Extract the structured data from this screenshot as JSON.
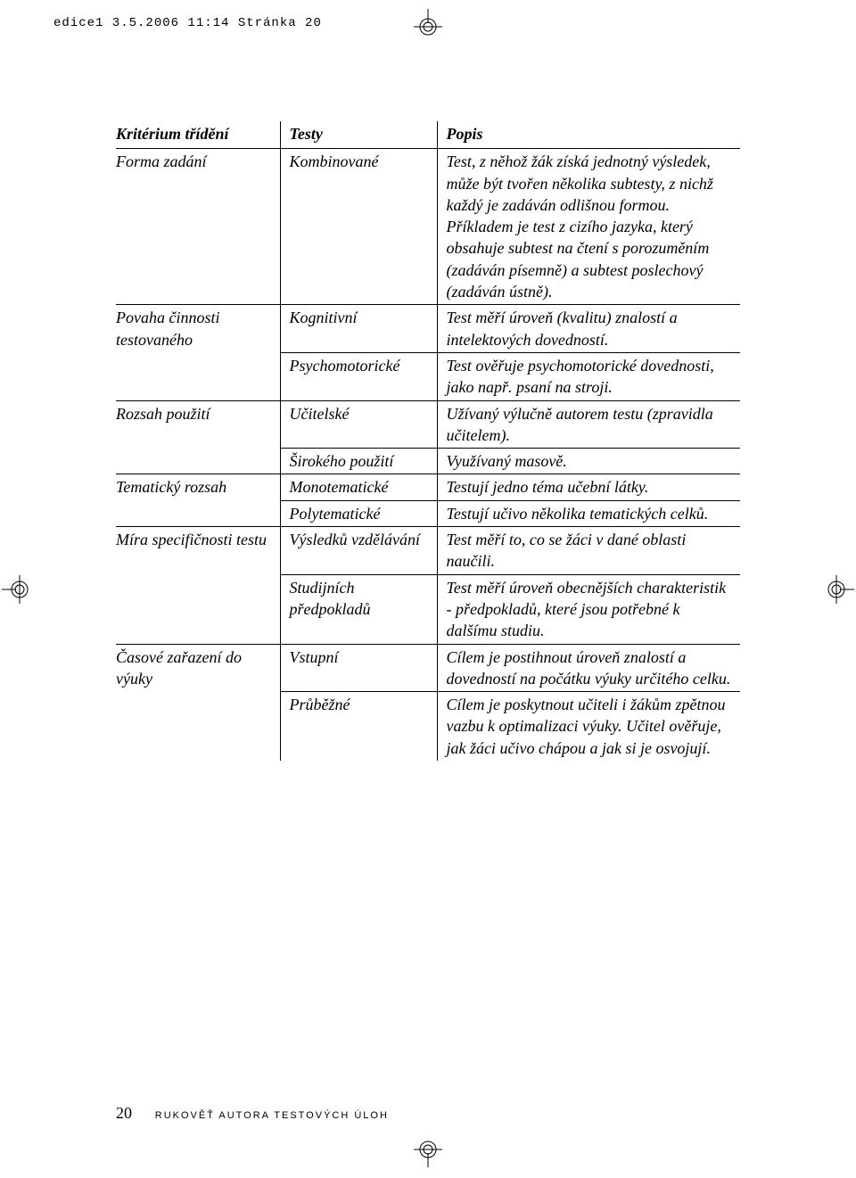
{
  "print_header": "edice1  3.5.2006 11:14  Stránka 20",
  "columns": [
    "Kritérium třídění",
    "Testy",
    "Popis"
  ],
  "rows": [
    {
      "c1": "Forma zadání",
      "c2": "Kombinované",
      "c3": "Test, z něhož žák získá jednotný výsledek, může být tvořen několika subtesty, z nichž každý je zadáván odlišnou formou. Příkladem je test z cizího jazyka, který obsahuje subtest na čtení s porozuměním (zadáván písemně) a subtest poslechový (zadáván ústně)."
    },
    {
      "c1": "Povaha činnosti testovaného",
      "c2": "Kognitivní",
      "c3": "Test měří úroveň (kvalitu) znalostí a intelektových dovedností."
    },
    {
      "c1": "",
      "c2": "Psychomotorické",
      "c3": "Test ověřuje psychomotorické dovednosti, jako např. psaní na stroji."
    },
    {
      "c1": "Rozsah použití",
      "c2": "Učitelské",
      "c3": "Užívaný výlučně autorem testu (zpravidla učitelem)."
    },
    {
      "c1": "",
      "c2": "Širokého použití",
      "c3": "Využívaný masově."
    },
    {
      "c1": "Tematický rozsah",
      "c2": "Monotematické",
      "c3": "Testují jedno téma učební látky."
    },
    {
      "c1": "",
      "c2": "Polytematické",
      "c3": "Testují učivo několika tematických celků."
    },
    {
      "c1": "Míra specifičnosti testu",
      "c2": "Výsledků vzdělávání",
      "c3": "Test měří to, co se žáci v dané oblasti naučili."
    },
    {
      "c1": "",
      "c2": "Studijních předpokladů",
      "c3": "Test měří úroveň obecnějších charakteristik - předpokladů, které jsou potřebné k dalšímu studiu."
    },
    {
      "c1": "Časové zařazení do výuky",
      "c2": "Vstupní",
      "c3": "Cílem je postihnout úroveň znalostí a dovedností na počátku výuky určitého celku."
    },
    {
      "c1": "",
      "c2": "Průběžné",
      "c3": "Cílem je poskytnout učiteli i žákům zpětnou vazbu k optimalizaci výuky. Učitel ověřuje, jak žáci učivo chápou a jak si je osvojují."
    }
  ],
  "footer": {
    "page": "20",
    "book_title": "RUKOVĚŤ AUTORA TESTOVÝCH ÚLOH"
  },
  "colors": {
    "text": "#000000",
    "bg": "#ffffff",
    "rule": "#000000"
  }
}
